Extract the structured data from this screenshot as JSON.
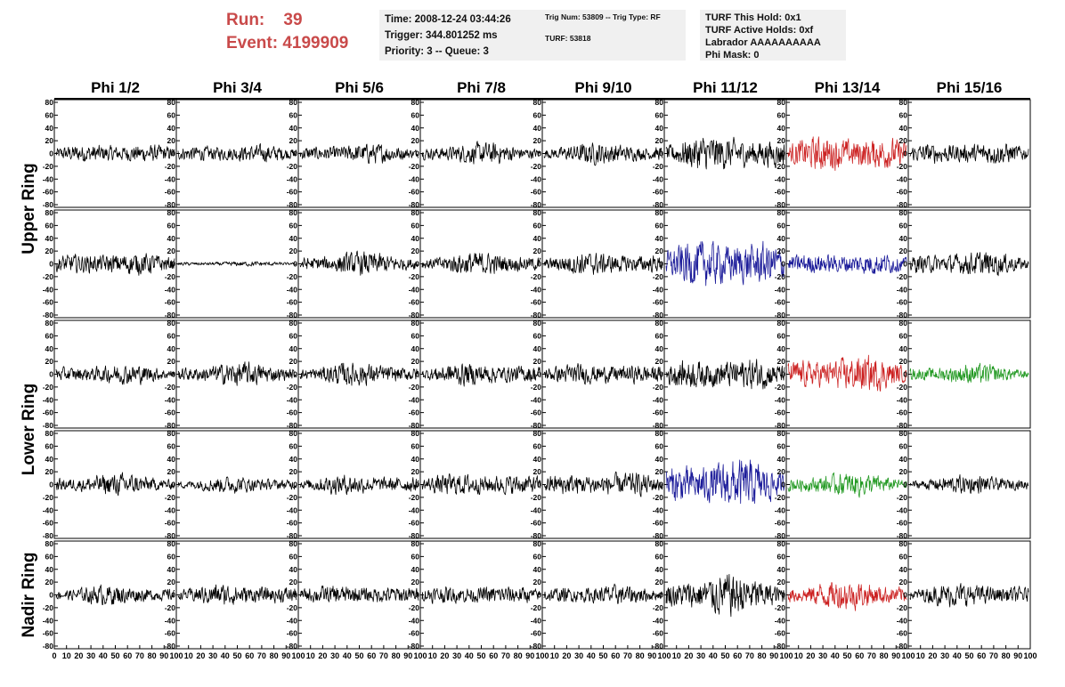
{
  "header": {
    "run_label": "Run:",
    "run_value": "39",
    "event_label": "Event:",
    "event_value": "4199909",
    "box1": [
      "Time: 2008-12-24 03:44:26",
      "Trigger: 344.801252 ms",
      "Priority: 3 -- Queue: 3"
    ],
    "box2": [
      "Trig Num: 53809 -- Trig Type: RF",
      "",
      "TURF: 53818"
    ],
    "box3": [
      "TURF This Hold: 0x1",
      "TURF Active Holds: 0xf",
      "Labrador AAAAAAAAAA",
      "Phi Mask: 0"
    ]
  },
  "colors": {
    "black": "#000000",
    "red": "#cc2222",
    "blue": "#1a1a99",
    "green": "#229922"
  },
  "chart_data": {
    "type": "line",
    "columns": [
      "Phi 1/2",
      "Phi 3/4",
      "Phi 5/6",
      "Phi 7/8",
      "Phi 9/10",
      "Phi 11/12",
      "Phi 13/14",
      "Phi 15/16"
    ],
    "ring_labels": [
      "Upper Ring",
      "Lower Ring",
      "Nadir Ring"
    ],
    "ring_row_spans": [
      [
        0,
        1
      ],
      [
        2,
        3
      ],
      [
        4,
        4
      ]
    ],
    "ylim": [
      -80,
      80
    ],
    "yticks": [
      -80,
      -60,
      -40,
      -20,
      0,
      20,
      40,
      60,
      80
    ],
    "xlim": [
      0,
      100
    ],
    "xticks": [
      0,
      10,
      20,
      30,
      40,
      50,
      60,
      70,
      80,
      90,
      100
    ],
    "samples": 260,
    "panels": [
      [
        {
          "color": "black",
          "amp": 12
        },
        {
          "color": "black",
          "amp": 11
        },
        {
          "color": "black",
          "amp": 12
        },
        {
          "color": "black",
          "amp": 13
        },
        {
          "color": "black",
          "amp": 13
        },
        {
          "color": "black",
          "amp": 22
        },
        {
          "color": "red",
          "amp": 22
        },
        {
          "color": "black",
          "amp": 14
        }
      ],
      [
        {
          "color": "black",
          "amp": 14
        },
        {
          "color": "black",
          "amp": 3
        },
        {
          "color": "black",
          "amp": 14
        },
        {
          "color": "black",
          "amp": 14
        },
        {
          "color": "black",
          "amp": 14
        },
        {
          "color": "blue",
          "amp": 30
        },
        {
          "color": "blue",
          "amp": 14
        },
        {
          "color": "black",
          "amp": 15
        }
      ],
      [
        {
          "color": "black",
          "amp": 12
        },
        {
          "color": "black",
          "amp": 14
        },
        {
          "color": "black",
          "amp": 14
        },
        {
          "color": "black",
          "amp": 14
        },
        {
          "color": "black",
          "amp": 13
        },
        {
          "color": "black",
          "amp": 20
        },
        {
          "color": "red",
          "amp": 22
        },
        {
          "color": "green",
          "amp": 12
        }
      ],
      [
        {
          "color": "black",
          "amp": 13
        },
        {
          "color": "black",
          "amp": 10
        },
        {
          "color": "black",
          "amp": 12
        },
        {
          "color": "black",
          "amp": 14
        },
        {
          "color": "black",
          "amp": 15
        },
        {
          "color": "blue",
          "amp": 30
        },
        {
          "color": "green",
          "amp": 14
        },
        {
          "color": "black",
          "amp": 11
        }
      ],
      [
        {
          "color": "black",
          "amp": 12
        },
        {
          "color": "black",
          "amp": 13
        },
        {
          "color": "black",
          "amp": 12
        },
        {
          "color": "black",
          "amp": 12
        },
        {
          "color": "black",
          "amp": 12
        },
        {
          "color": "black",
          "amp": 25
        },
        {
          "color": "red",
          "amp": 18
        },
        {
          "color": "black",
          "amp": 14
        }
      ]
    ]
  }
}
